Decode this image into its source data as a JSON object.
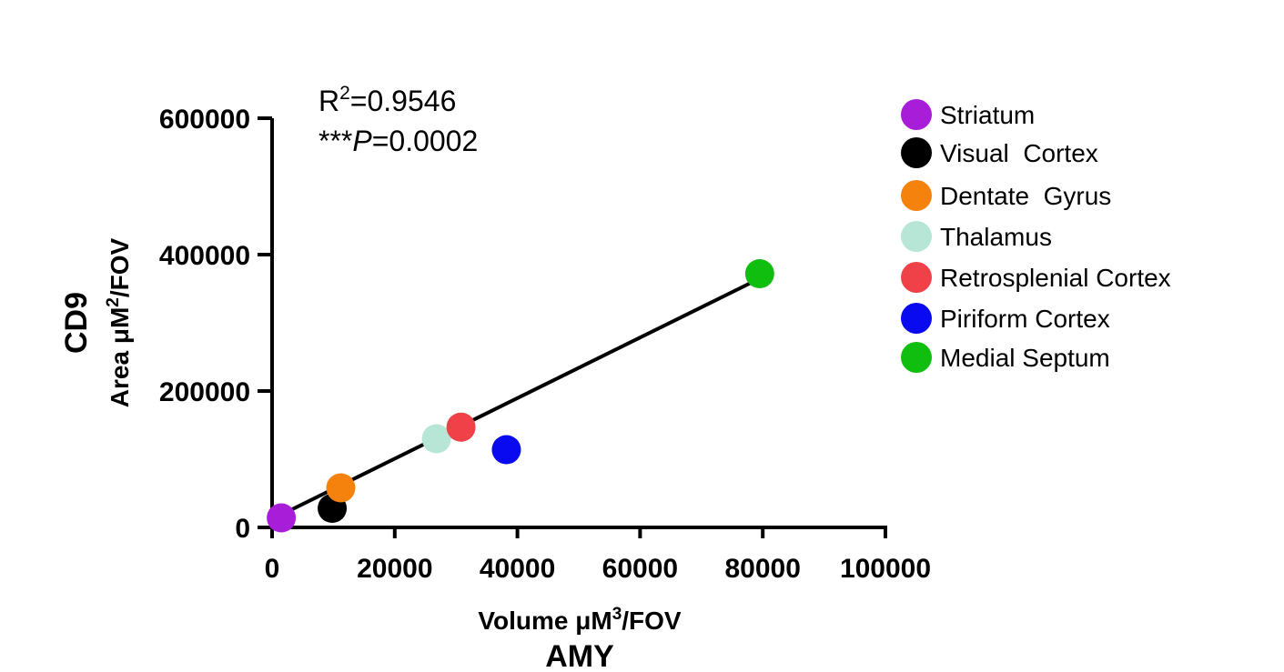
{
  "chart_data": {
    "type": "scatter",
    "xlabel": "Volume μM³/FOV",
    "xlabel_main": "Volume μM",
    "xlabel_sup": "3",
    "xlabel_tail": "/FOV",
    "xgroup_label": "AMY",
    "ylabel_main": "Area μM",
    "ylabel_sup": "2",
    "ylabel_tail": "/FOV",
    "ygroup_label": "CD9",
    "xlim": [
      0,
      100000
    ],
    "ylim": [
      0,
      600000
    ],
    "x_ticks": [
      0,
      20000,
      40000,
      60000,
      80000,
      100000
    ],
    "y_ticks": [
      0,
      200000,
      400000,
      600000
    ],
    "x_tick_labels": [
      "0",
      "20000",
      "40000",
      "60000",
      "80000",
      "100000"
    ],
    "y_tick_labels": [
      "0",
      "200000",
      "400000",
      "600000"
    ],
    "annotation": {
      "r2_prefix": "R",
      "r2_sup": "2",
      "r2_value": "=0.9546",
      "p_stars": "***",
      "p_letter": "P",
      "p_value": "=0.0002"
    },
    "fit_line": {
      "x": [
        0,
        79500
      ],
      "y": [
        12000,
        365000
      ]
    },
    "points": [
      {
        "name": "Striatum",
        "x": 1500,
        "y": 14000,
        "color": "#A81ED8"
      },
      {
        "name": "Visual  Cortex",
        "x": 9800,
        "y": 28000,
        "color": "#000000"
      },
      {
        "name": "Dentate  Gyrus",
        "x": 11200,
        "y": 58000,
        "color": "#F5820D"
      },
      {
        "name": "Thalamus",
        "x": 26800,
        "y": 130000,
        "color": "#B8E6D6"
      },
      {
        "name": "Retrosplenial Cortex",
        "x": 30800,
        "y": 147000,
        "color": "#F04048"
      },
      {
        "name": "Piriform Cortex",
        "x": 38200,
        "y": 114000,
        "color": "#0A0AF0"
      },
      {
        "name": "Medial Septum",
        "x": 79500,
        "y": 372000,
        "color": "#10BE10"
      }
    ],
    "legend_placement": "right",
    "grid": false
  }
}
